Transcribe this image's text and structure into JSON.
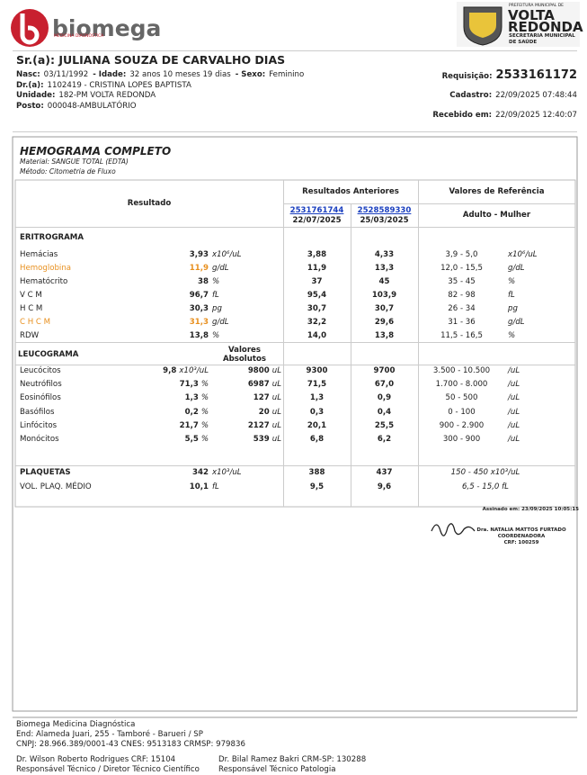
{
  "header": {
    "logo_name": "biomega",
    "logo_sub": "MEDICINA DIAGNÓSTICA",
    "city_top": "PREFEITURA MUNICIPAL DE",
    "city_name_1": "VOLTA",
    "city_name_2": "REDONDA",
    "city_sub_1": "SECRETARIA MUNICIPAL",
    "city_sub_2": "DE SAÚDE"
  },
  "patient": {
    "name": "Sr.(a): JULIANA SOUZA DE CARVALHO DIAS",
    "lines": [
      [
        {
          "label": "Nasc:",
          "value": "03/11/1992"
        },
        {
          "label": "- Idade:",
          "value": "32 anos 10 meses 19 dias"
        },
        {
          "label": "- Sexo:",
          "value": "Feminino"
        }
      ],
      [
        {
          "label": "Dr.(a):",
          "value": "1102419 - CRISTINA LOPES BAPTISTA"
        }
      ],
      [
        {
          "label": "Unidade:",
          "value": "182-PM VOLTA REDONDA"
        }
      ],
      [
        {
          "label": "Posto:",
          "value": "000048-AMBULATÓRIO"
        }
      ]
    ],
    "requisicao": {
      "label": "Requisição:",
      "value": "2533161172"
    },
    "cadastro": {
      "label": "Cadastro:",
      "value": "22/09/2025 07:48:44"
    },
    "recebido": {
      "label": "Recebido em:",
      "value": "22/09/2025 12:40:07"
    }
  },
  "exam": {
    "title": "HEMOGRAMA COMPLETO",
    "material": "Material:  SANGUE TOTAL (EDTA)",
    "method": "Método: Citometria de Fluxo",
    "head": {
      "result": "Resultado",
      "previous": "Resultados Anteriores",
      "prev": [
        {
          "id": "2531761744",
          "date": "22/07/2025"
        },
        {
          "id": "2528589330",
          "date": "25/03/2025"
        }
      ],
      "reference": "Valores de Referência",
      "group": "Adulto - Mulher"
    },
    "eritrograma": {
      "label": "ERITROGRAMA",
      "rows": [
        {
          "name": "Hemácias",
          "value": "3,93",
          "unit": "x10⁶/uL",
          "prev": [
            "3,88",
            "4,33"
          ],
          "ref": "3,9 - 5,0",
          "ref_unit": "x10⁶/uL"
        },
        {
          "name": "Hemoglobina",
          "value": "11,9",
          "unit": "g/dL",
          "prev": [
            "11,9",
            "13,3"
          ],
          "ref": "12,0 - 15,5",
          "ref_unit": "g/dL",
          "color": "#e8901f"
        },
        {
          "name": "Hematócrito",
          "value": "38",
          "unit": "%",
          "prev": [
            "37",
            "45"
          ],
          "ref": "35 - 45",
          "ref_unit": "%"
        },
        {
          "name": "V C M",
          "value": "96,7",
          "unit": "fL",
          "prev": [
            "95,4",
            "103,9"
          ],
          "ref": "82 - 98",
          "ref_unit": "fL"
        },
        {
          "name": "H C M",
          "value": "30,3",
          "unit": "pg",
          "prev": [
            "30,7",
            "30,7"
          ],
          "ref": "26 - 34",
          "ref_unit": "pg"
        },
        {
          "name": "C H C M",
          "value": "31,3",
          "unit": "g/dL",
          "prev": [
            "32,2",
            "29,6"
          ],
          "ref": "31 - 36",
          "ref_unit": "g/dL",
          "color": "#e8901f"
        },
        {
          "name": "RDW",
          "value": "13,8",
          "unit": "%",
          "prev": [
            "14,0",
            "13,8"
          ],
          "ref": "11,5 - 16,5",
          "ref_unit": "%"
        }
      ]
    },
    "leucograma": {
      "label": "LEUCOGRAMA",
      "abs_1": "Valores",
      "abs_2": "Absolutos",
      "rows": [
        {
          "name": "Leucócitos",
          "value": "9,8",
          "unit": "x10³/uL",
          "abs": "9800",
          "abs_unit": "uL",
          "prev": [
            "9300",
            "9700"
          ],
          "ref": "3.500 - 10.500",
          "ref_unit": "/uL"
        },
        {
          "name": "Neutrófilos",
          "value": "71,3",
          "unit": "%",
          "abs": "6987",
          "abs_unit": "uL",
          "prev": [
            "71,5",
            "67,0"
          ],
          "ref": "1.700 - 8.000",
          "ref_unit": "/uL"
        },
        {
          "name": "Eosinófilos",
          "value": "1,3",
          "unit": "%",
          "abs": "127",
          "abs_unit": "uL",
          "prev": [
            "1,3",
            "0,9"
          ],
          "ref": "50 - 500",
          "ref_unit": "/uL"
        },
        {
          "name": "Basófilos",
          "value": "0,2",
          "unit": "%",
          "abs": "20",
          "abs_unit": "uL",
          "prev": [
            "0,3",
            "0,4"
          ],
          "ref": "0 - 100",
          "ref_unit": "/uL"
        },
        {
          "name": "Linfócitos",
          "value": "21,7",
          "unit": "%",
          "abs": "2127",
          "abs_unit": "uL",
          "prev": [
            "20,1",
            "25,5"
          ],
          "ref": "900 - 2.900",
          "ref_unit": "/uL"
        },
        {
          "name": "Monócitos",
          "value": "5,5",
          "unit": "%",
          "abs": "539",
          "abs_unit": "uL",
          "prev": [
            "6,8",
            "6,2"
          ],
          "ref": "300 - 900",
          "ref_unit": "/uL"
        }
      ]
    },
    "plaquetas": {
      "rows": [
        {
          "name": "PLAQUETAS",
          "value": "342",
          "unit": "x10³/uL",
          "prev": [
            "388",
            "437"
          ],
          "ref": "150 - 450 x10³/uL"
        },
        {
          "name": "VOL. PLAQ. MÉDIO",
          "value": "10,1",
          "unit": "fL",
          "prev": [
            "9,5",
            "9,6"
          ],
          "ref": "6,5 - 15,0 fL"
        }
      ]
    },
    "signed": "Assinado em: 23/09/2025 10:05:15",
    "signer": {
      "name": "Dra. NATALIA MATTOS FURTADO",
      "role": "COORDENADORA",
      "crf": "CRF: 100259"
    }
  },
  "footer": {
    "company": "Biomega Medicina Diagnóstica",
    "address": "End: Alameda Juari, 255 - Tamboré - Barueri / SP",
    "ids": "CNPJ: 28.966.389/0001-43 CNES: 9513183 CRMSP: 979836",
    "resp": [
      {
        "name": "Dr. Wilson Roberto Rodrigues CRF: 15104",
        "role": "Responsável Técnico / Diretor Técnico Científico"
      },
      {
        "name": "Dr. Bilal Ramez Bakri CRM-SP: 130288",
        "role": "Responsável Técnico Patologia"
      }
    ]
  }
}
